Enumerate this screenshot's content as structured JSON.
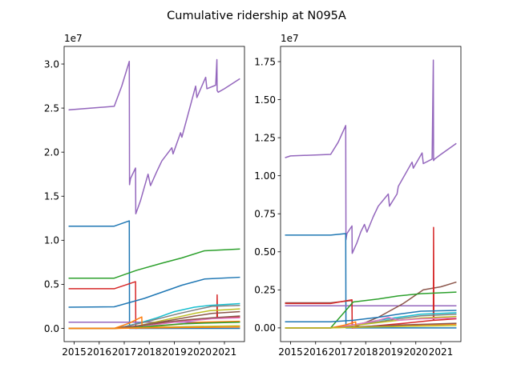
{
  "title": "Cumulative ridership at N095A",
  "chart_data": [
    {
      "type": "line",
      "title": "",
      "xlabel": "",
      "ylabel": "",
      "offset_text": "1e7",
      "xlim": [
        2014.6,
        2021.8
      ],
      "ylim": [
        -0.15,
        3.2
      ],
      "xticks": [
        2015,
        2016,
        2017,
        2018,
        2019,
        2020,
        2021
      ],
      "xtick_labels": [
        "2015",
        "2016",
        "2017",
        "2018",
        "2019",
        "2020",
        "2021"
      ],
      "yticks": [
        0,
        0.5,
        1.0,
        1.5,
        2.0,
        2.5,
        3.0
      ],
      "ytick_labels": [
        "0.0",
        "0.5",
        "1.0",
        "1.5",
        "2.0",
        "2.5",
        "3.0"
      ],
      "grid": false,
      "series": [
        {
          "color": "#9467bd",
          "x": [
            2014.8,
            2016.6,
            2016.9,
            2017.2,
            2017.21,
            2017.25,
            2017.45,
            2017.46,
            2017.65,
            2017.8,
            2017.95,
            2018.05,
            2018.3,
            2018.5,
            2018.9,
            2018.95,
            2019.25,
            2019.3,
            2019.85,
            2019.9,
            2020.25,
            2020.3,
            2020.65,
            2020.7,
            2020.71,
            2020.75,
            2021.0,
            2021.6
          ],
          "y": [
            2.48,
            2.52,
            2.75,
            3.03,
            1.63,
            1.7,
            1.82,
            1.3,
            1.45,
            1.6,
            1.75,
            1.62,
            1.78,
            1.9,
            2.05,
            1.98,
            2.22,
            2.17,
            2.75,
            2.62,
            2.85,
            2.72,
            2.76,
            3.05,
            2.7,
            2.68,
            2.72,
            2.83
          ]
        },
        {
          "color": "#1f77b4",
          "x": [
            2014.8,
            2016.6,
            2017.2,
            2017.21,
            2017.4,
            2021.6
          ],
          "y": [
            1.16,
            1.16,
            1.22,
            0.0,
            0.0,
            0.0
          ]
        },
        {
          "color": "#2ca02c",
          "x": [
            2014.8,
            2016.6,
            2017.5,
            2018.5,
            2019.3,
            2020.2,
            2021.6
          ],
          "y": [
            0.57,
            0.57,
            0.66,
            0.74,
            0.8,
            0.88,
            0.9
          ]
        },
        {
          "color": "#d62728",
          "x": [
            2014.8,
            2016.6,
            2017.45,
            2017.46,
            2018.5,
            2020.7,
            2020.71,
            2020.72,
            2020.73,
            2021.6
          ],
          "y": [
            0.45,
            0.45,
            0.53,
            0.0,
            0.06,
            0.12,
            0.38,
            0.12,
            0.12,
            0.13
          ]
        },
        {
          "color": "#1f77b4",
          "x": [
            2014.8,
            2016.6,
            2017.3,
            2017.8,
            2018.3,
            2018.8,
            2019.3,
            2020.2,
            2021.6
          ],
          "y": [
            0.24,
            0.245,
            0.3,
            0.34,
            0.39,
            0.44,
            0.49,
            0.56,
            0.58
          ]
        },
        {
          "color": "#9467bd",
          "x": [
            2014.8,
            2021.6
          ],
          "y": [
            0.07,
            0.07
          ]
        },
        {
          "color": "#17becf",
          "x": [
            2014.8,
            2016.6,
            2017.0,
            2017.6,
            2018.3,
            2019.0,
            2019.8,
            2020.4,
            2021.6
          ],
          "y": [
            0.0,
            0.0,
            0.02,
            0.06,
            0.12,
            0.19,
            0.24,
            0.26,
            0.28
          ]
        },
        {
          "color": "#7f7f7f",
          "x": [
            2014.8,
            2016.6,
            2017.2,
            2017.8,
            2018.5,
            2019.2,
            2020.0,
            2020.5,
            2021.6
          ],
          "y": [
            0.0,
            0.0,
            0.03,
            0.07,
            0.12,
            0.17,
            0.22,
            0.25,
            0.26
          ]
        },
        {
          "color": "#bcbd22",
          "x": [
            2014.8,
            2016.6,
            2017.4,
            2018.2,
            2019.0,
            2019.8,
            2020.4,
            2021.6
          ],
          "y": [
            0.0,
            0.0,
            0.02,
            0.07,
            0.12,
            0.17,
            0.2,
            0.22
          ]
        },
        {
          "color": "#8c564b",
          "x": [
            2014.8,
            2016.6,
            2017.4,
            2018.2,
            2019.0,
            2019.8,
            2020.5,
            2021.6
          ],
          "y": [
            0.0,
            0.0,
            0.02,
            0.06,
            0.1,
            0.14,
            0.17,
            0.19
          ]
        },
        {
          "color": "#e377c2",
          "x": [
            2014.8,
            2016.6,
            2017.4,
            2018.2,
            2019.0,
            2019.8,
            2020.5,
            2021.6
          ],
          "y": [
            0.0,
            0.0,
            0.01,
            0.04,
            0.07,
            0.09,
            0.11,
            0.12
          ]
        },
        {
          "color": "#ff7f0e",
          "x": [
            2014.8,
            2016.6,
            2017.2,
            2017.7,
            2017.71,
            2018.5,
            2019.3,
            2020.0,
            2021.6
          ],
          "y": [
            0.0,
            0.0,
            0.06,
            0.13,
            0.01,
            0.03,
            0.05,
            0.07,
            0.08
          ]
        },
        {
          "color": "#2ca02c",
          "x": [
            2014.8,
            2016.6,
            2017.4,
            2018.3,
            2019.2,
            2020.2,
            2021.6
          ],
          "y": [
            0.0,
            0.0,
            0.01,
            0.03,
            0.05,
            0.06,
            0.07
          ]
        },
        {
          "color": "#8c564b",
          "x": [
            2014.8,
            2016.6,
            2017.6,
            2018.6,
            2019.6,
            2020.5,
            2021.6
          ],
          "y": [
            0.0,
            0.0,
            0.03,
            0.07,
            0.1,
            0.12,
            0.14
          ]
        },
        {
          "color": "#bcbd22",
          "x": [
            2014.8,
            2016.6,
            2018.0,
            2019.5,
            2021.6
          ],
          "y": [
            0.0,
            0.0,
            0.01,
            0.02,
            0.03
          ]
        },
        {
          "color": "#ff7f0e",
          "x": [
            2014.8,
            2016.6,
            2018.0,
            2019.5,
            2021.6
          ],
          "y": [
            0.0,
            0.0,
            0.005,
            0.01,
            0.015
          ]
        }
      ]
    },
    {
      "type": "line",
      "title": "",
      "xlabel": "",
      "ylabel": "",
      "offset_text": "1e7",
      "xlim": [
        2014.6,
        2021.8
      ],
      "ylim": [
        -0.09,
        1.85
      ],
      "xticks": [
        2015,
        2016,
        2017,
        2018,
        2019,
        2020,
        2021
      ],
      "xtick_labels": [
        "2015",
        "2016",
        "2017",
        "2018",
        "2019",
        "2020",
        "2021"
      ],
      "yticks": [
        0,
        0.25,
        0.5,
        0.75,
        1.0,
        1.25,
        1.5,
        1.75
      ],
      "ytick_labels": [
        "0.00",
        "0.25",
        "0.50",
        "0.75",
        "1.00",
        "1.25",
        "1.50",
        "1.75"
      ],
      "grid": false,
      "series": [
        {
          "color": "#9467bd",
          "x": [
            2014.8,
            2015.0,
            2016.6,
            2016.9,
            2017.2,
            2017.21,
            2017.25,
            2017.45,
            2017.46,
            2017.65,
            2017.8,
            2017.95,
            2018.05,
            2018.3,
            2018.5,
            2018.9,
            2018.95,
            2019.25,
            2019.3,
            2019.85,
            2019.9,
            2020.25,
            2020.3,
            2020.65,
            2020.7,
            2020.71,
            2020.75,
            2021.0,
            2021.6
          ],
          "y": [
            1.12,
            1.13,
            1.14,
            1.22,
            1.33,
            0.58,
            0.62,
            0.67,
            0.49,
            0.56,
            0.63,
            0.68,
            0.63,
            0.73,
            0.8,
            0.88,
            0.8,
            0.88,
            0.93,
            1.09,
            1.05,
            1.15,
            1.08,
            1.11,
            1.76,
            1.1,
            1.11,
            1.14,
            1.21
          ]
        },
        {
          "color": "#1f77b4",
          "x": [
            2014.8,
            2016.6,
            2017.2,
            2017.21,
            2017.4,
            2021.6
          ],
          "y": [
            0.61,
            0.61,
            0.62,
            0.0,
            0.0,
            0.0
          ]
        },
        {
          "color": "#9467bd",
          "x": [
            2014.8,
            2021.6
          ],
          "y": [
            0.145,
            0.145
          ]
        },
        {
          "color": "#8c564b",
          "x": [
            2014.8,
            2016.6,
            2017.45,
            2017.46,
            2018.5,
            2019.5,
            2020.3,
            2021.0,
            2021.6
          ],
          "y": [
            0.165,
            0.165,
            0.18,
            0.0,
            0.07,
            0.16,
            0.25,
            0.27,
            0.3
          ]
        },
        {
          "color": "#d62728",
          "x": [
            2014.8,
            2016.6,
            2017.45,
            2017.46,
            2018.5,
            2019.5,
            2020.7,
            2020.71,
            2020.72,
            2020.73,
            2021.6
          ],
          "y": [
            0.16,
            0.16,
            0.185,
            0.0,
            0.015,
            0.03,
            0.05,
            0.66,
            0.05,
            0.05,
            0.06
          ]
        },
        {
          "color": "#2ca02c",
          "x": [
            2014.8,
            2016.6,
            2017.5,
            2018.5,
            2019.3,
            2020.2,
            2021.6
          ],
          "y": [
            0.0,
            0.0,
            0.17,
            0.19,
            0.21,
            0.225,
            0.235
          ]
        },
        {
          "color": "#1f77b4",
          "x": [
            2014.8,
            2016.6,
            2017.5,
            2018.5,
            2019.3,
            2020.2,
            2021.6
          ],
          "y": [
            0.04,
            0.04,
            0.05,
            0.07,
            0.09,
            0.11,
            0.115
          ]
        },
        {
          "color": "#17becf",
          "x": [
            2014.8,
            2016.6,
            2017.5,
            2018.5,
            2019.3,
            2020.2,
            2021.6
          ],
          "y": [
            0.0,
            0.0,
            0.02,
            0.05,
            0.07,
            0.09,
            0.1
          ]
        },
        {
          "color": "#7f7f7f",
          "x": [
            2014.8,
            2016.6,
            2017.5,
            2018.5,
            2019.3,
            2020.2,
            2021.6
          ],
          "y": [
            0.0,
            0.0,
            0.02,
            0.04,
            0.06,
            0.08,
            0.09
          ]
        },
        {
          "color": "#bcbd22",
          "x": [
            2014.8,
            2016.6,
            2017.5,
            2018.5,
            2019.3,
            2020.2,
            2021.6
          ],
          "y": [
            0.0,
            0.0,
            0.015,
            0.035,
            0.05,
            0.065,
            0.075
          ]
        },
        {
          "color": "#e377c2",
          "x": [
            2014.8,
            2016.6,
            2017.5,
            2018.5,
            2018.9,
            2019.3,
            2020.2,
            2021.6
          ],
          "y": [
            0.0,
            0.0,
            0.02,
            0.05,
            0.07,
            0.05,
            0.06,
            0.065
          ]
        },
        {
          "color": "#ff7f0e",
          "x": [
            2014.8,
            2016.6,
            2017.2,
            2017.6,
            2017.61,
            2018.5,
            2019.3,
            2020.2,
            2021.6
          ],
          "y": [
            0.0,
            0.0,
            0.02,
            0.04,
            0.005,
            0.01,
            0.015,
            0.02,
            0.025
          ]
        },
        {
          "color": "#8c564b",
          "x": [
            2014.8,
            2016.6,
            2018.0,
            2019.5,
            2021.6
          ],
          "y": [
            0.0,
            0.0,
            0.01,
            0.02,
            0.03
          ]
        },
        {
          "color": "#bcbd22",
          "x": [
            2014.8,
            2016.6,
            2018.0,
            2019.5,
            2021.6
          ],
          "y": [
            0.0,
            0.0,
            0.005,
            0.01,
            0.015
          ]
        }
      ]
    }
  ]
}
